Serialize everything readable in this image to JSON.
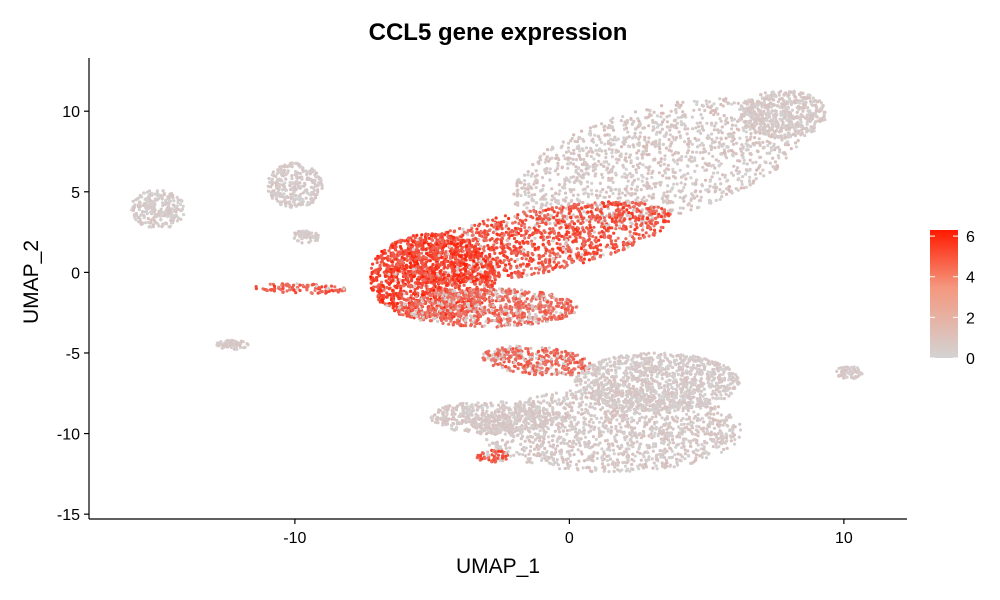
{
  "chart_data": {
    "type": "scatter",
    "title": "CCL5 gene expression",
    "xlabel": "UMAP_1",
    "ylabel": "UMAP_2",
    "xlim": [
      -17.5,
      12.3
    ],
    "ylim": [
      -15.3,
      13.3
    ],
    "x_ticks": [
      -10,
      0,
      10
    ],
    "x_tick_labels": [
      "-10",
      "0",
      "10"
    ],
    "y_ticks": [
      -15,
      -10,
      -5,
      0,
      5,
      10
    ],
    "y_tick_labels": [
      "-15",
      "-10",
      "-5",
      "0",
      "5",
      "10"
    ],
    "grid": false,
    "color_scale": {
      "min": 0,
      "max": 6.3,
      "low_color": "#d3d3d3",
      "high_color": "#ff1a00",
      "ticks": [
        0,
        2,
        4,
        6
      ],
      "tick_labels": [
        "0",
        "2",
        "4",
        "6"
      ],
      "legend_position": "right"
    },
    "clusters": [
      {
        "region": "large upper-right cluster",
        "cx": 3.2,
        "cy": 6.8,
        "rx": 5.8,
        "ry": 3.2,
        "rotation_deg": 30,
        "mean_expression": 0.7
      },
      {
        "region": "upper-right cluster tip",
        "cx": 7.8,
        "cy": 9.8,
        "rx": 1.6,
        "ry": 1.5,
        "rotation_deg": 0,
        "mean_expression": 0.5
      },
      {
        "region": "central high-expression band",
        "cx": -1.5,
        "cy": 1.8,
        "rx": 5.5,
        "ry": 1.9,
        "rotation_deg": 20,
        "mean_expression": 4.3
      },
      {
        "region": "central left dense cluster",
        "cx": -5.0,
        "cy": -0.3,
        "rx": 2.3,
        "ry": 2.7,
        "rotation_deg": 0,
        "mean_expression": 4.8
      },
      {
        "region": "central lower lobe",
        "cx": -3.0,
        "cy": -2.2,
        "rx": 3.3,
        "ry": 1.2,
        "rotation_deg": 0,
        "mean_expression": 3.5
      },
      {
        "region": "lower bridge cluster",
        "cx": -1.2,
        "cy": -5.5,
        "rx": 2.0,
        "ry": 0.9,
        "rotation_deg": -10,
        "mean_expression": 3.6
      },
      {
        "region": "lower large cluster",
        "cx": 1.5,
        "cy": -9.8,
        "rx": 4.8,
        "ry": 2.6,
        "rotation_deg": 0,
        "mean_expression": 0.6
      },
      {
        "region": "lower large cluster left arm",
        "cx": -2.8,
        "cy": -9.0,
        "rx": 2.3,
        "ry": 1.0,
        "rotation_deg": 0,
        "mean_expression": 0.5
      },
      {
        "region": "lower large cluster right lobe",
        "cx": 3.2,
        "cy": -6.8,
        "rx": 3.0,
        "ry": 1.8,
        "rotation_deg": 0,
        "mean_expression": 0.4
      },
      {
        "region": "far-left cluster",
        "cx": -15.0,
        "cy": 3.9,
        "rx": 1.0,
        "ry": 1.2,
        "rotation_deg": 0,
        "mean_expression": 0.3
      },
      {
        "region": "upper-left cluster",
        "cx": -10.0,
        "cy": 5.4,
        "rx": 1.0,
        "ry": 1.4,
        "rotation_deg": 0,
        "mean_expression": 0.3
      },
      {
        "region": "left small cluster",
        "cx": -9.6,
        "cy": 2.2,
        "rx": 0.5,
        "ry": 0.4,
        "rotation_deg": 0,
        "mean_expression": 0.3
      },
      {
        "region": "bottom-left small cluster",
        "cx": -12.3,
        "cy": -4.5,
        "rx": 0.6,
        "ry": 0.3,
        "rotation_deg": 0,
        "mean_expression": 0.4
      },
      {
        "region": "far-right small cluster",
        "cx": 10.2,
        "cy": -6.2,
        "rx": 0.5,
        "ry": 0.4,
        "rotation_deg": 0,
        "mean_expression": 0.3
      },
      {
        "region": "left streak",
        "cx": -9.8,
        "cy": -1.0,
        "rx": 1.7,
        "ry": 0.3,
        "rotation_deg": -3,
        "mean_expression": 4.0
      },
      {
        "region": "lower-left red patch",
        "cx": -2.8,
        "cy": -11.4,
        "rx": 0.6,
        "ry": 0.4,
        "rotation_deg": 0,
        "mean_expression": 4.2
      }
    ]
  }
}
